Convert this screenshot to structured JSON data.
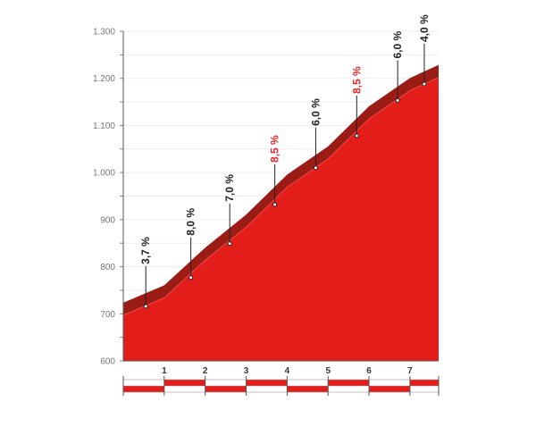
{
  "chart_data": {
    "type": "area",
    "title": "",
    "xlabel": "",
    "ylabel": "",
    "ylim": [
      600,
      1300
    ],
    "xlim": [
      0,
      7.7
    ],
    "y_ticks": [
      "600",
      "700",
      "800",
      "900",
      "1.000",
      "1.100",
      "1.200",
      "1.300"
    ],
    "y_tick_values": [
      600,
      700,
      800,
      900,
      1000,
      1100,
      1200,
      1300
    ],
    "x_ticks": [
      "1",
      "2",
      "3",
      "4",
      "5",
      "6",
      "7"
    ],
    "x_tick_values": [
      1,
      2,
      3,
      4,
      5,
      6,
      7
    ],
    "profile": {
      "km": [
        0,
        1,
        2,
        3,
        4,
        5,
        6,
        7,
        7.7
      ],
      "elevation": [
        697,
        734,
        814,
        884,
        969,
        1029,
        1114,
        1174,
        1202
      ]
    },
    "segments": [
      {
        "km": 0.55,
        "elev": 716,
        "label": "3,7 %",
        "steep": false
      },
      {
        "km": 1.65,
        "elev": 777,
        "label": "8,0 %",
        "steep": false
      },
      {
        "km": 2.6,
        "elev": 849,
        "label": "7,0 %",
        "steep": false
      },
      {
        "km": 3.7,
        "elev": 932,
        "label": "8,5 %",
        "steep": true
      },
      {
        "km": 4.7,
        "elev": 1010,
        "label": "6,0 %",
        "steep": false
      },
      {
        "km": 5.7,
        "elev": 1078,
        "label": "8,5 %",
        "steep": true
      },
      {
        "km": 6.7,
        "elev": 1153,
        "label": "6,0 %",
        "steep": false
      },
      {
        "km": 7.35,
        "elev": 1188,
        "label": "4,0 %",
        "steep": false
      }
    ],
    "colors": {
      "fill": "#e31e1a",
      "band": "#9b1c15",
      "steep_label": "#e8262a",
      "label": "#222222"
    }
  }
}
